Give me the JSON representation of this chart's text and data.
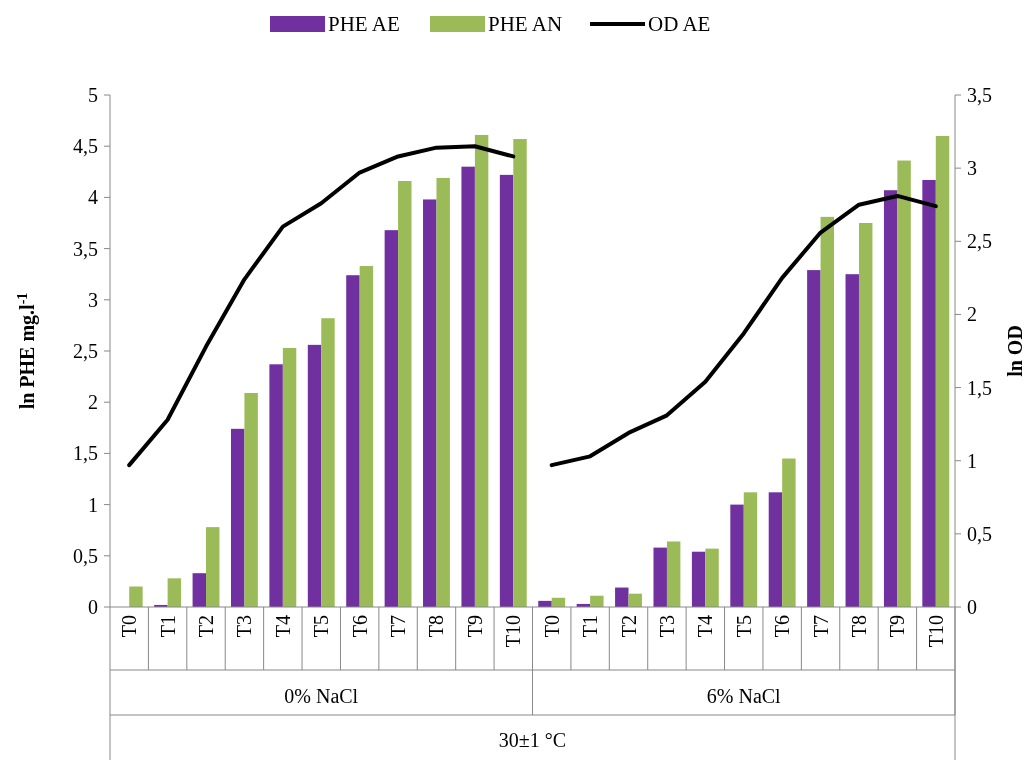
{
  "chart_data": {
    "type": "bar",
    "categories": [
      "T0",
      "T1",
      "T2",
      "T3",
      "T4",
      "T5",
      "T6",
      "T7",
      "T8",
      "T9",
      "T10",
      "T0",
      "T1",
      "T2",
      "T3",
      "T4",
      "T5",
      "T6",
      "T7",
      "T8",
      "T9",
      "T10"
    ],
    "series": [
      {
        "name": "PHE AE",
        "color": "#7030a0",
        "values": [
          0,
          0.02,
          0.33,
          1.74,
          2.37,
          2.56,
          3.24,
          3.68,
          3.98,
          4.3,
          4.22,
          0.06,
          0.03,
          0.19,
          0.58,
          0.54,
          1.0,
          1.12,
          3.29,
          3.25,
          4.07,
          4.17
        ]
      },
      {
        "name": "PHE AN",
        "color": "#9bbb59",
        "values": [
          0.2,
          0.28,
          0.78,
          2.09,
          2.53,
          2.82,
          3.33,
          4.16,
          4.19,
          4.61,
          4.57,
          0.09,
          0.11,
          0.13,
          0.64,
          0.57,
          1.12,
          1.45,
          3.81,
          3.75,
          4.36,
          4.6
        ]
      },
      {
        "name": "OD AE",
        "type": "line",
        "axis": "y2",
        "color": "#000000",
        "values": [
          0.97,
          1.28,
          1.78,
          2.24,
          2.6,
          2.76,
          2.97,
          3.08,
          3.14,
          3.15,
          3.08,
          null,
          null,
          null,
          null,
          null,
          null,
          null,
          null,
          null,
          null,
          null
        ]
      },
      {
        "type": "line",
        "axis": "y2",
        "color": "#000000",
        "values": [
          null,
          null,
          null,
          null,
          null,
          null,
          null,
          null,
          null,
          null,
          null,
          0.97,
          1.03,
          1.19,
          1.31,
          1.54,
          1.87,
          2.25,
          2.56,
          2.75,
          2.81,
          2.74
        ]
      }
    ],
    "ylabel": "ln PHE mg.l$^{-1}$",
    "y2label": "ln OD",
    "ylim": [
      0,
      5
    ],
    "yticks": [
      0,
      {
        "value": 0.5,
        "label": "0,5"
      },
      1,
      {
        "value": 1.5,
        "label": "1,5"
      },
      2,
      {
        "value": 2.5,
        "label": "2,5"
      },
      3,
      {
        "value": 3.5,
        "label": "3,5"
      },
      4,
      {
        "value": 4.5,
        "label": "4,5"
      },
      5
    ],
    "y2lim": [
      0,
      3.5
    ],
    "y2ticks": [
      0,
      {
        "value": 0.5,
        "label": "0,5"
      },
      1,
      {
        "value": 1.5,
        "label": "1,5"
      },
      2,
      {
        "value": 2.5,
        "label": "2,5"
      },
      3,
      {
        "value": 3.5,
        "label": "3,5"
      }
    ],
    "annotations": [
      "0% NaCl",
      "6% NaCl",
      "30±1 °C"
    ],
    "legend": "top",
    "grid": false
  }
}
